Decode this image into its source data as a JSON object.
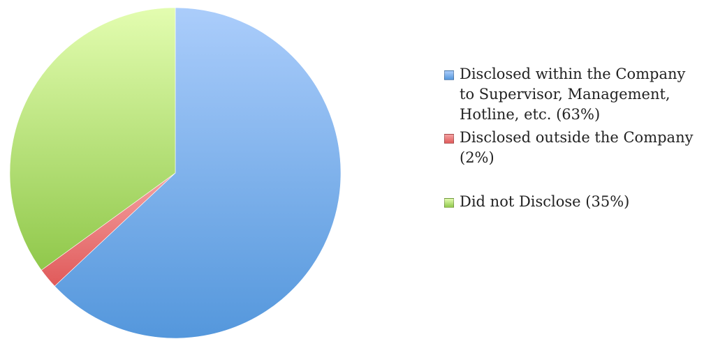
{
  "chart_data": {
    "type": "pie",
    "start_angle_deg": 0,
    "direction": "clockwise",
    "slices": [
      {
        "label": "Disclosed within the Company to Supervisor, Management, Hotline, etc. (63%)",
        "value": 63,
        "color_light": "#abcdfb",
        "color_dark": "#5497dc"
      },
      {
        "label": "Disclosed outside the Company (2%)",
        "value": 2,
        "color_light": "#f4a2a2",
        "color_dark": "#e05a5a"
      },
      {
        "label": "Did not Disclose (35%)",
        "value": 35,
        "color_light": "#e3fdb0",
        "color_dark": "#90c84b"
      }
    ],
    "legend_position": "right"
  }
}
